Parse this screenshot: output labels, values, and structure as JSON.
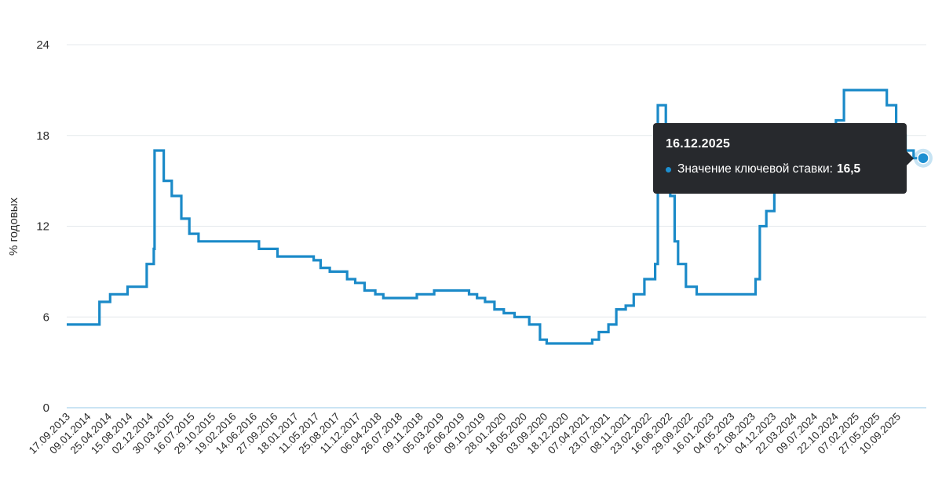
{
  "colors": {
    "line": "#1b8ac8",
    "grid": "#e4e8ec",
    "tooltip_bg": "#27292d",
    "marker": "#1d8fd1"
  },
  "tooltip": {
    "date": "16.12.2025",
    "series_label": "Значение ключевой ставки:",
    "value": "16,5"
  },
  "chart_data": {
    "type": "line",
    "ylabel": "% годовых",
    "ylim": [
      0,
      24
    ],
    "yticks": [
      "0",
      "6",
      "12",
      "18",
      "24"
    ],
    "xticks": [
      "17.09.2013",
      "09.01.2014",
      "25.04.2014",
      "15.08.2014",
      "02.12.2014",
      "30.03.2015",
      "16.07.2015",
      "29.10.2015",
      "19.02.2016",
      "14.06.2016",
      "27.09.2016",
      "18.01.2017",
      "11.05.2017",
      "25.08.2017",
      "11.12.2017",
      "06.04.2018",
      "26.07.2018",
      "09.11.2018",
      "05.03.2019",
      "26.06.2019",
      "09.10.2019",
      "28.01.2020",
      "18.05.2020",
      "03.09.2020",
      "18.12.2020",
      "07.04.2021",
      "23.07.2021",
      "08.11.2021",
      "23.02.2022",
      "16.06.2022",
      "29.09.2022",
      "16.01.2023",
      "04.05.2023",
      "21.08.2023",
      "04.12.2023",
      "22.03.2024",
      "09.07.2024",
      "22.10.2024",
      "07.02.2025",
      "27.05.2025",
      "10.09.2025"
    ],
    "x_start": "2013-09-13",
    "x_end": "2025-12-16",
    "series": [
      {
        "points": [
          [
            "2013-09-13",
            5.5
          ],
          [
            "2014-03-03",
            7.0
          ],
          [
            "2014-04-28",
            7.5
          ],
          [
            "2014-07-28",
            8.0
          ],
          [
            "2014-11-05",
            9.5
          ],
          [
            "2014-12-12",
            10.5
          ],
          [
            "2014-12-16",
            17.0
          ],
          [
            "2015-02-02",
            15.0
          ],
          [
            "2015-03-16",
            14.0
          ],
          [
            "2015-05-05",
            12.5
          ],
          [
            "2015-06-16",
            11.5
          ],
          [
            "2015-08-03",
            11.0
          ],
          [
            "2016-06-14",
            10.5
          ],
          [
            "2016-09-19",
            10.0
          ],
          [
            "2017-03-27",
            9.75
          ],
          [
            "2017-05-02",
            9.25
          ],
          [
            "2017-06-19",
            9.0
          ],
          [
            "2017-09-18",
            8.5
          ],
          [
            "2017-10-30",
            8.25
          ],
          [
            "2017-12-18",
            7.75
          ],
          [
            "2018-02-12",
            7.5
          ],
          [
            "2018-03-26",
            7.25
          ],
          [
            "2018-09-17",
            7.5
          ],
          [
            "2018-12-17",
            7.75
          ],
          [
            "2019-06-17",
            7.5
          ],
          [
            "2019-07-29",
            7.25
          ],
          [
            "2019-09-09",
            7.0
          ],
          [
            "2019-10-28",
            6.5
          ],
          [
            "2019-12-16",
            6.25
          ],
          [
            "2020-02-10",
            6.0
          ],
          [
            "2020-04-27",
            5.5
          ],
          [
            "2020-06-22",
            4.5
          ],
          [
            "2020-07-27",
            4.25
          ],
          [
            "2021-03-22",
            4.5
          ],
          [
            "2021-04-26",
            5.0
          ],
          [
            "2021-06-15",
            5.5
          ],
          [
            "2021-07-26",
            6.5
          ],
          [
            "2021-09-13",
            6.75
          ],
          [
            "2021-10-25",
            7.5
          ],
          [
            "2021-12-20",
            8.5
          ],
          [
            "2022-02-14",
            9.5
          ],
          [
            "2022-02-28",
            20.0
          ],
          [
            "2022-04-11",
            17.0
          ],
          [
            "2022-05-04",
            14.0
          ],
          [
            "2022-05-27",
            11.0
          ],
          [
            "2022-06-14",
            9.5
          ],
          [
            "2022-07-25",
            8.0
          ],
          [
            "2022-09-19",
            7.5
          ],
          [
            "2023-07-24",
            8.5
          ],
          [
            "2023-08-15",
            12.0
          ],
          [
            "2023-09-18",
            13.0
          ],
          [
            "2023-10-30",
            15.0
          ],
          [
            "2023-12-18",
            16.0
          ],
          [
            "2024-07-29",
            18.0
          ],
          [
            "2024-09-16",
            19.0
          ],
          [
            "2024-10-28",
            21.0
          ],
          [
            "2025-06-09",
            20.0
          ],
          [
            "2025-07-28",
            18.0
          ],
          [
            "2025-09-15",
            17.0
          ],
          [
            "2025-10-27",
            16.5
          ],
          [
            "2025-12-16",
            16.5
          ]
        ]
      }
    ]
  }
}
